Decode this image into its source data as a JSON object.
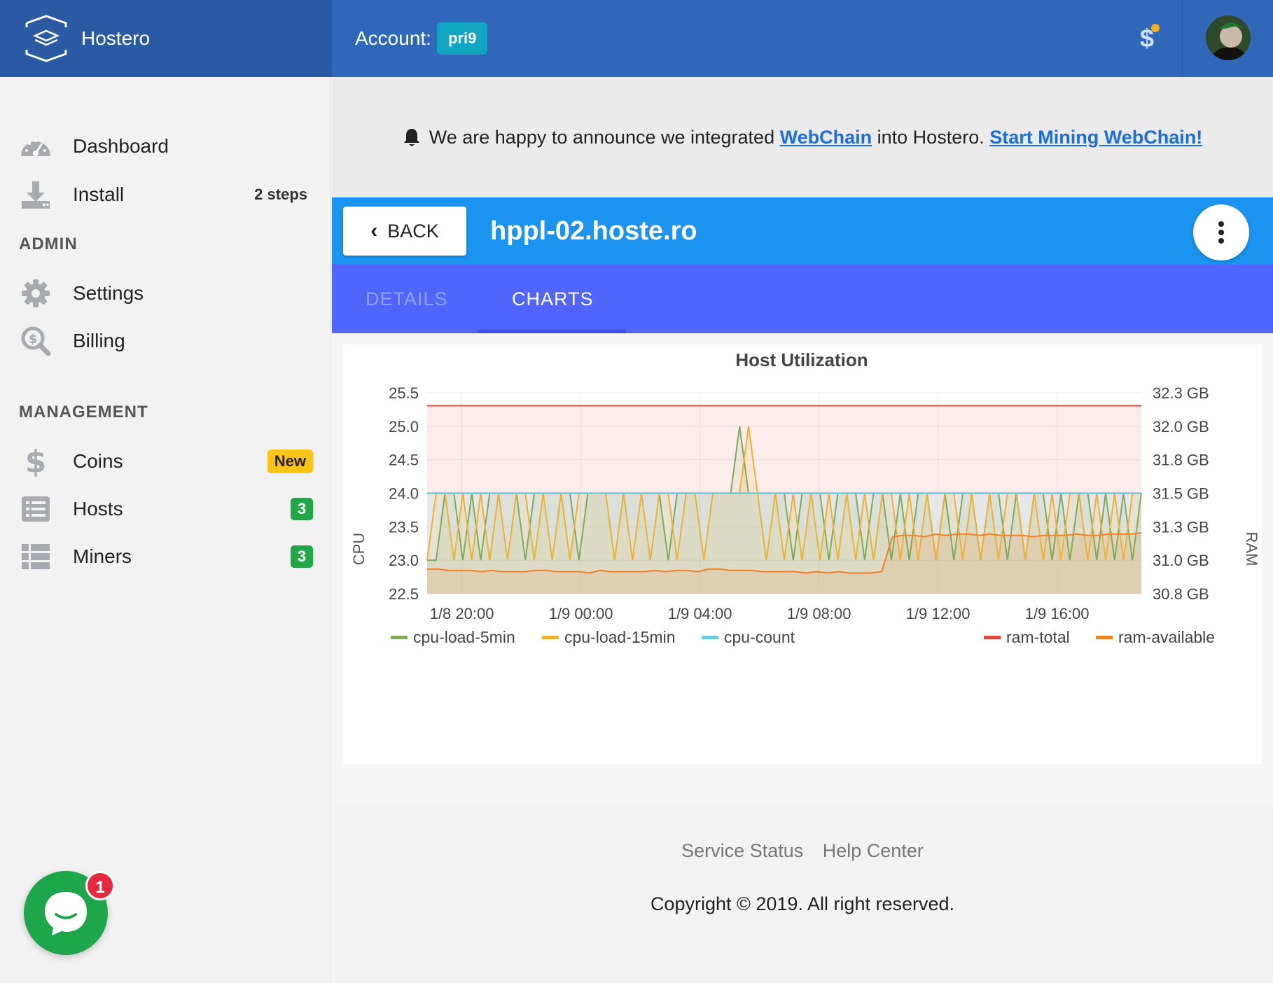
{
  "brand": {
    "name": "Hostero",
    "logo_icon": "layers-box-icon"
  },
  "header": {
    "account_label": "Account:",
    "account_name": "pri9",
    "billing_icon": "dollar-icon",
    "avatar": "user-avatar"
  },
  "sidebar": {
    "items_top": [
      {
        "label": "Dashboard",
        "icon": "speedometer-icon"
      },
      {
        "label": "Install",
        "icon": "download-icon",
        "extra": "2 steps"
      }
    ],
    "admin_title": "ADMIN",
    "admin_items": [
      {
        "label": "Settings",
        "icon": "gear-icon"
      },
      {
        "label": "Billing",
        "icon": "search-dollar-icon"
      }
    ],
    "management_title": "MANAGEMENT",
    "management_items": [
      {
        "label": "Coins",
        "icon": "dollar-icon",
        "badge": "New"
      },
      {
        "label": "Hosts",
        "icon": "list-icon",
        "badge": "3"
      },
      {
        "label": "Miners",
        "icon": "table-icon",
        "badge": "3"
      }
    ]
  },
  "chat": {
    "unread": "1"
  },
  "announcement": {
    "text_before": "We are happy to announce we integrated",
    "link1": "WebChain",
    "text_middle": "into Hostero.",
    "link2": "Start Mining WebChain!"
  },
  "host": {
    "back_label": "BACK",
    "title": "hppl-02.hoste.ro"
  },
  "tabs": [
    {
      "label": "DETAILS",
      "active": false
    },
    {
      "label": "CHARTS",
      "active": true
    }
  ],
  "colors": {
    "cpu_5min": "#7cab5c",
    "cpu_15min": "#efb130",
    "cpu_count": "#6ccde0",
    "ram_total": "#e5473a",
    "ram_available": "#f27e26"
  },
  "chart_data": {
    "type": "line",
    "title": "Host Utilization",
    "ylabel": "CPU",
    "y2label": "RAM",
    "ylim": [
      22.5,
      25.5
    ],
    "y_ticks": [
      "25.5",
      "25.0",
      "24.5",
      "24.0",
      "23.5",
      "23.0",
      "22.5"
    ],
    "y2lim": [
      30.75,
      32.3
    ],
    "y2_ticks": [
      "32.3 GB",
      "32.0 GB",
      "31.8 GB",
      "31.5 GB",
      "31.3 GB",
      "31.0 GB",
      "30.8 GB"
    ],
    "x_ticks": [
      "1/8 20:00",
      "1/9 00:00",
      "1/9 04:00",
      "1/9 08:00",
      "1/9 12:00",
      "1/9 16:00"
    ],
    "x_start": "1/8 18:50",
    "x_end": "1/9 18:50",
    "grid": true,
    "legend_left": [
      "cpu-load-5min",
      "cpu-load-15min",
      "cpu-count"
    ],
    "legend_right": [
      "ram-total",
      "ram-available"
    ],
    "series": [
      {
        "name": "cpu-count",
        "axis": "left",
        "values": [
          24,
          24
        ]
      },
      {
        "name": "ram-total",
        "axis": "right",
        "values": [
          32.2,
          32.2
        ]
      },
      {
        "name": "cpu-load-5min",
        "axis": "left",
        "values": [
          23,
          23,
          24,
          24,
          23,
          24,
          23,
          24,
          24,
          24,
          24,
          23,
          24,
          24,
          24,
          24,
          24,
          23,
          24,
          24,
          24,
          24,
          24,
          24,
          24,
          24,
          24,
          23,
          24,
          24,
          24,
          24,
          24,
          24,
          24,
          25,
          24,
          24,
          24,
          24,
          24,
          23,
          24,
          24,
          24,
          23,
          24,
          24,
          24,
          23,
          24,
          24,
          23,
          24,
          23,
          24,
          24,
          23,
          24,
          23,
          24,
          24,
          23,
          24,
          24,
          23,
          24,
          23,
          24,
          24,
          23,
          24,
          23,
          24,
          24,
          23,
          24,
          23,
          24,
          23,
          24
        ]
      },
      {
        "name": "cpu-load-15min",
        "axis": "left",
        "values": [
          23,
          24,
          24,
          23,
          24,
          23,
          24,
          23,
          24,
          23,
          24,
          24,
          23,
          24,
          23,
          24,
          23,
          24,
          24,
          24,
          24,
          23,
          24,
          23,
          24,
          23,
          24,
          24,
          23,
          24,
          24,
          23,
          24,
          24,
          24,
          24,
          25,
          24,
          23,
          24,
          23,
          24,
          23,
          24,
          23,
          24,
          23,
          24,
          23,
          24,
          23,
          24,
          24,
          23,
          24,
          23,
          24,
          23,
          24,
          24,
          23,
          24,
          23,
          24,
          23,
          24,
          24,
          23,
          24,
          23,
          24,
          23,
          24,
          24,
          23,
          24,
          23,
          24,
          23,
          24,
          24
        ]
      },
      {
        "name": "ram-available",
        "axis": "right",
        "values": [
          30.94,
          30.94,
          30.93,
          30.93,
          30.93,
          30.92,
          30.93,
          30.92,
          30.92,
          30.92,
          30.93,
          30.93,
          30.92,
          30.92,
          30.92,
          30.91,
          30.93,
          30.92,
          30.92,
          30.92,
          30.92,
          30.93,
          30.92,
          30.93,
          30.93,
          30.92,
          30.94,
          30.94,
          30.93,
          30.93,
          30.93,
          30.92,
          30.92,
          30.92,
          30.92,
          30.91,
          30.92,
          30.91,
          30.92,
          30.91,
          30.91,
          30.91,
          30.92,
          31.19,
          31.2,
          31.2,
          31.19,
          31.21,
          31.2,
          31.21,
          31.21,
          31.2,
          31.21,
          31.2,
          31.2,
          31.2,
          31.19,
          31.2,
          31.2,
          31.2,
          31.21,
          31.2,
          31.2,
          31.21,
          31.21,
          31.21,
          31.22
        ]
      }
    ]
  },
  "footer": {
    "links": [
      "Service Status",
      "Help Center"
    ],
    "copyright": "Copyright © 2019. All right reserved."
  }
}
